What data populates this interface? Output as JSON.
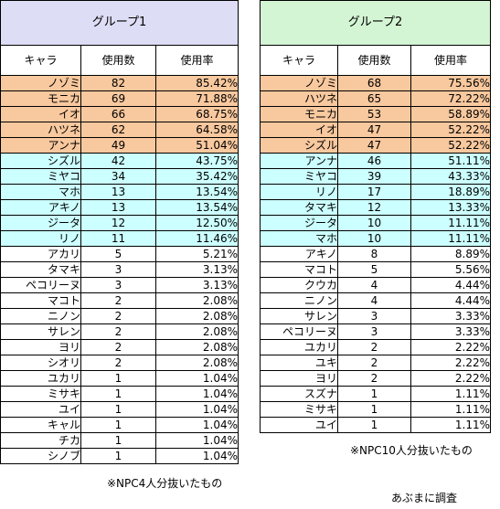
{
  "group1": {
    "title": "グループ1",
    "title_bg": "#ddddf5",
    "headers": [
      "キャラ",
      "使用数",
      "使用率"
    ],
    "rows": [
      {
        "name": "ノゾミ",
        "count": "82",
        "rate": "85.42%",
        "color": "orange"
      },
      {
        "name": "モニカ",
        "count": "69",
        "rate": "71.88%",
        "color": "orange"
      },
      {
        "name": "イオ",
        "count": "66",
        "rate": "68.75%",
        "color": "orange"
      },
      {
        "name": "ハツネ",
        "count": "62",
        "rate": "64.58%",
        "color": "orange"
      },
      {
        "name": "アンナ",
        "count": "49",
        "rate": "51.04%",
        "color": "orange"
      },
      {
        "name": "シズル",
        "count": "42",
        "rate": "43.75%",
        "color": "cyan"
      },
      {
        "name": "ミヤコ",
        "count": "34",
        "rate": "35.42%",
        "color": "cyan"
      },
      {
        "name": "マホ",
        "count": "13",
        "rate": "13.54%",
        "color": "cyan"
      },
      {
        "name": "アキノ",
        "count": "13",
        "rate": "13.54%",
        "color": "cyan"
      },
      {
        "name": "ジータ",
        "count": "12",
        "rate": "12.50%",
        "color": "cyan"
      },
      {
        "name": "リノ",
        "count": "11",
        "rate": "11.46%",
        "color": "cyan"
      },
      {
        "name": "アカリ",
        "count": "5",
        "rate": "5.21%",
        "color": "white"
      },
      {
        "name": "タマキ",
        "count": "3",
        "rate": "3.13%",
        "color": "white"
      },
      {
        "name": "ペコリーヌ",
        "count": "3",
        "rate": "3.13%",
        "color": "white"
      },
      {
        "name": "マコト",
        "count": "2",
        "rate": "2.08%",
        "color": "white"
      },
      {
        "name": "ニノン",
        "count": "2",
        "rate": "2.08%",
        "color": "white"
      },
      {
        "name": "サレン",
        "count": "2",
        "rate": "2.08%",
        "color": "white"
      },
      {
        "name": "ヨリ",
        "count": "2",
        "rate": "2.08%",
        "color": "white"
      },
      {
        "name": "シオリ",
        "count": "2",
        "rate": "2.08%",
        "color": "white"
      },
      {
        "name": "ユカリ",
        "count": "1",
        "rate": "1.04%",
        "color": "white"
      },
      {
        "name": "ミサキ",
        "count": "1",
        "rate": "1.04%",
        "color": "white"
      },
      {
        "name": "ユイ",
        "count": "1",
        "rate": "1.04%",
        "color": "white"
      },
      {
        "name": "キャル",
        "count": "1",
        "rate": "1.04%",
        "color": "white"
      },
      {
        "name": "チカ",
        "count": "1",
        "rate": "1.04%",
        "color": "white"
      },
      {
        "name": "シノブ",
        "count": "1",
        "rate": "1.04%",
        "color": "white"
      }
    ],
    "note": "※NPC4人分抜いたもの"
  },
  "group2": {
    "title": "グループ2",
    "title_bg": "#d4f5d4",
    "headers": [
      "キャラ",
      "使用数",
      "使用率"
    ],
    "rows": [
      {
        "name": "ノゾミ",
        "count": "68",
        "rate": "75.56%",
        "color": "orange"
      },
      {
        "name": "ハツネ",
        "count": "65",
        "rate": "72.22%",
        "color": "orange"
      },
      {
        "name": "モニカ",
        "count": "53",
        "rate": "58.89%",
        "color": "orange"
      },
      {
        "name": "イオ",
        "count": "47",
        "rate": "52.22%",
        "color": "orange"
      },
      {
        "name": "シズル",
        "count": "47",
        "rate": "52.22%",
        "color": "orange"
      },
      {
        "name": "アンナ",
        "count": "46",
        "rate": "51.11%",
        "color": "cyan"
      },
      {
        "name": "ミヤコ",
        "count": "39",
        "rate": "43.33%",
        "color": "cyan"
      },
      {
        "name": "リノ",
        "count": "17",
        "rate": "18.89%",
        "color": "cyan"
      },
      {
        "name": "タマキ",
        "count": "12",
        "rate": "13.33%",
        "color": "cyan"
      },
      {
        "name": "ジータ",
        "count": "10",
        "rate": "11.11%",
        "color": "cyan"
      },
      {
        "name": "マホ",
        "count": "10",
        "rate": "11.11%",
        "color": "cyan"
      },
      {
        "name": "アキノ",
        "count": "8",
        "rate": "8.89%",
        "color": "white"
      },
      {
        "name": "マコト",
        "count": "5",
        "rate": "5.56%",
        "color": "white"
      },
      {
        "name": "クウカ",
        "count": "4",
        "rate": "4.44%",
        "color": "white"
      },
      {
        "name": "ニノン",
        "count": "4",
        "rate": "4.44%",
        "color": "white"
      },
      {
        "name": "サレン",
        "count": "3",
        "rate": "3.33%",
        "color": "white"
      },
      {
        "name": "ペコリーヌ",
        "count": "3",
        "rate": "3.33%",
        "color": "white"
      },
      {
        "name": "ユカリ",
        "count": "2",
        "rate": "2.22%",
        "color": "white"
      },
      {
        "name": "ユキ",
        "count": "2",
        "rate": "2.22%",
        "color": "white"
      },
      {
        "name": "ヨリ",
        "count": "2",
        "rate": "2.22%",
        "color": "white"
      },
      {
        "name": "スズナ",
        "count": "1",
        "rate": "1.11%",
        "color": "white"
      },
      {
        "name": "ミサキ",
        "count": "1",
        "rate": "1.11%",
        "color": "white"
      },
      {
        "name": "ユイ",
        "count": "1",
        "rate": "1.11%",
        "color": "white"
      }
    ],
    "note": "※NPC10人分抜いたもの"
  },
  "footer": "あぶまに調査",
  "colors": {
    "orange": "#f8c89e",
    "cyan": "#ccffff",
    "white": "#ffffff"
  }
}
